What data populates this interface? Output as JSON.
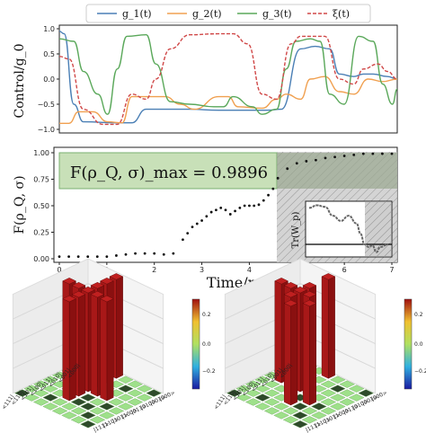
{
  "chart_data": [
    {
      "type": "line",
      "ylabel": "Control/g_0",
      "ylim": [
        -1.0,
        1.0
      ],
      "xlim": [
        0,
        7
      ],
      "yticks": [
        "1.0",
        "0.5",
        "0.0",
        "−0.5",
        "−1.0"
      ],
      "legend": {
        "placement": "top",
        "entries": [
          "g_1(t)",
          "g_2(t)",
          "g_3(t)",
          "ξ(t)"
        ]
      },
      "series": [
        {
          "name": "g_1(t)",
          "color": "#4a7fb5",
          "style": "solid",
          "points": [
            [
              0,
              0.95
            ],
            [
              0.1,
              0.9
            ],
            [
              0.3,
              -0.5
            ],
            [
              0.5,
              -0.85
            ],
            [
              1.2,
              -0.87
            ],
            [
              1.5,
              -0.87
            ],
            [
              1.8,
              -0.6
            ],
            [
              2.7,
              -0.6
            ],
            [
              3.3,
              -0.62
            ],
            [
              3.6,
              -0.62
            ],
            [
              4.3,
              -0.62
            ],
            [
              4.6,
              -0.6
            ],
            [
              5.0,
              0.6
            ],
            [
              5.3,
              0.65
            ],
            [
              5.6,
              0.6
            ],
            [
              5.8,
              0.1
            ],
            [
              6.1,
              0.05
            ],
            [
              6.3,
              0.1
            ],
            [
              6.5,
              0.1
            ],
            [
              6.8,
              0.05
            ],
            [
              7.0,
              0.0
            ]
          ]
        },
        {
          "name": "g_2(t)",
          "color": "#f0a050",
          "style": "solid",
          "points": [
            [
              0,
              -0.88
            ],
            [
              0.2,
              -0.88
            ],
            [
              0.4,
              -0.65
            ],
            [
              0.7,
              -0.65
            ],
            [
              1.0,
              -0.85
            ],
            [
              1.3,
              -0.87
            ],
            [
              1.5,
              -0.35
            ],
            [
              2.2,
              -0.35
            ],
            [
              2.5,
              -0.5
            ],
            [
              2.8,
              -0.6
            ],
            [
              3.3,
              -0.35
            ],
            [
              3.5,
              -0.35
            ],
            [
              3.7,
              -0.55
            ],
            [
              4.2,
              -0.58
            ],
            [
              4.5,
              -0.4
            ],
            [
              4.7,
              -0.3
            ],
            [
              5.0,
              -0.4
            ],
            [
              5.2,
              0.0
            ],
            [
              5.5,
              0.05
            ],
            [
              5.8,
              -0.25
            ],
            [
              6.1,
              -0.3
            ],
            [
              6.4,
              0.0
            ],
            [
              6.7,
              -0.05
            ],
            [
              7.0,
              0.0
            ]
          ]
        },
        {
          "name": "g_3(t)",
          "color": "#5aa85a",
          "style": "solid",
          "points": [
            [
              0,
              0.8
            ],
            [
              0.3,
              0.75
            ],
            [
              0.5,
              0.15
            ],
            [
              0.8,
              -0.3
            ],
            [
              1.0,
              -0.7
            ],
            [
              1.2,
              0.2
            ],
            [
              1.4,
              0.85
            ],
            [
              1.8,
              0.88
            ],
            [
              2.0,
              0.3
            ],
            [
              2.3,
              -0.45
            ],
            [
              2.7,
              -0.5
            ],
            [
              3.2,
              -0.55
            ],
            [
              3.4,
              -0.55
            ],
            [
              3.6,
              -0.35
            ],
            [
              4.0,
              -0.55
            ],
            [
              4.2,
              -0.7
            ],
            [
              4.5,
              -0.6
            ],
            [
              4.7,
              0.2
            ],
            [
              4.9,
              0.75
            ],
            [
              5.2,
              0.8
            ],
            [
              5.4,
              0.75
            ],
            [
              5.6,
              -0.3
            ],
            [
              5.9,
              -0.5
            ],
            [
              6.2,
              0.85
            ],
            [
              6.5,
              0.75
            ],
            [
              6.7,
              -0.1
            ],
            [
              6.9,
              -0.5
            ],
            [
              7.0,
              -0.2
            ]
          ]
        },
        {
          "name": "ξ(t)",
          "color": "#d04848",
          "style": "dashed",
          "points": [
            [
              0,
              0.45
            ],
            [
              0.2,
              0.4
            ],
            [
              0.5,
              -0.6
            ],
            [
              0.9,
              -0.9
            ],
            [
              1.2,
              -0.9
            ],
            [
              1.5,
              -0.3
            ],
            [
              1.8,
              -0.4
            ],
            [
              2.0,
              0.0
            ],
            [
              2.3,
              0.6
            ],
            [
              2.7,
              0.88
            ],
            [
              3.3,
              0.9
            ],
            [
              3.6,
              0.9
            ],
            [
              3.9,
              0.7
            ],
            [
              4.2,
              -0.3
            ],
            [
              4.5,
              -0.4
            ],
            [
              4.8,
              0.7
            ],
            [
              5.0,
              0.85
            ],
            [
              5.5,
              0.85
            ],
            [
              5.8,
              0.0
            ],
            [
              6.1,
              -0.1
            ],
            [
              6.3,
              0.2
            ],
            [
              6.6,
              0.3
            ],
            [
              6.8,
              0.15
            ],
            [
              7.0,
              0.0
            ]
          ]
        }
      ]
    },
    {
      "type": "scatter",
      "ylabel": "F(ρ_Q, σ)",
      "xlabel": "Time/ns",
      "xlim": [
        0,
        7
      ],
      "ylim": [
        0,
        1.0
      ],
      "xticks": [
        "0",
        "1",
        "2",
        "3",
        "4",
        "5",
        "6",
        "7"
      ],
      "yticks": [
        "1.00",
        "0.75",
        "0.50",
        "0.25",
        "0.00"
      ],
      "annotation": "F(ρ_Q, σ)_max = 0.9896",
      "max_fidelity": 0.9896,
      "x": [
        0.0,
        0.2,
        0.4,
        0.6,
        0.8,
        1.0,
        1.2,
        1.4,
        1.6,
        1.8,
        2.0,
        2.2,
        2.4,
        2.6,
        2.7,
        2.8,
        2.9,
        3.0,
        3.1,
        3.2,
        3.3,
        3.4,
        3.5,
        3.6,
        3.7,
        3.8,
        3.9,
        4.0,
        4.1,
        4.2,
        4.3,
        4.4,
        4.5,
        4.6,
        4.8,
        5.0,
        5.2,
        5.4,
        5.6,
        5.8,
        6.0,
        6.2,
        6.4,
        6.6,
        6.8,
        7.0
      ],
      "y": [
        0.02,
        0.02,
        0.02,
        0.02,
        0.02,
        0.02,
        0.03,
        0.04,
        0.05,
        0.05,
        0.05,
        0.04,
        0.05,
        0.18,
        0.24,
        0.3,
        0.33,
        0.36,
        0.4,
        0.44,
        0.46,
        0.48,
        0.46,
        0.42,
        0.45,
        0.48,
        0.5,
        0.5,
        0.5,
        0.51,
        0.55,
        0.6,
        0.66,
        0.76,
        0.85,
        0.9,
        0.92,
        0.93,
        0.95,
        0.96,
        0.97,
        0.98,
        0.99,
        0.99,
        0.99,
        0.99
      ]
    },
    {
      "type": "line",
      "inset": true,
      "ylabel": "Tr(W_p)",
      "x": [
        0.0,
        0.1,
        0.2,
        0.3,
        0.4,
        0.5,
        0.6,
        0.65,
        0.7,
        0.75,
        0.8,
        0.85,
        0.9,
        1.0
      ],
      "y": [
        0.7,
        0.75,
        0.72,
        0.55,
        0.45,
        0.55,
        0.4,
        0.2,
        0.0,
        -0.05,
        -0.02,
        -0.15,
        -0.05,
        0.0
      ],
      "zero_line": 0.0
    },
    {
      "type": "heatmap",
      "title": "",
      "style": "3d-bars",
      "basis_labels": [
        "<000|",
        "<001|",
        "<010|",
        "<011|",
        "<100|",
        "<101|",
        "<110|",
        "<111|"
      ],
      "column_labels": [
        "|000>",
        "|001>",
        "|010>",
        "|011>",
        "|100>",
        "|101>",
        "|110>",
        "|111>"
      ],
      "colorbar_ticks": [
        "0.2",
        "0.0",
        "−0.2"
      ],
      "description_values": {
        "tall_bars": 0.25,
        "background": 0.0
      }
    },
    {
      "type": "heatmap",
      "title": "",
      "style": "3d-bars",
      "basis_labels": [
        "<000|",
        "<001|",
        "<010|",
        "<011|",
        "<100|",
        "<101|",
        "<110|",
        "<111|"
      ],
      "column_labels": [
        "|000>",
        "|001>",
        "|010>",
        "|011>",
        "|100>",
        "|101>",
        "|110>",
        "|111>"
      ],
      "colorbar_ticks": [
        "0.2",
        "0.0",
        "−0.2"
      ],
      "description_values": {
        "tall_bars": 0.25,
        "background": 0.0
      }
    }
  ]
}
